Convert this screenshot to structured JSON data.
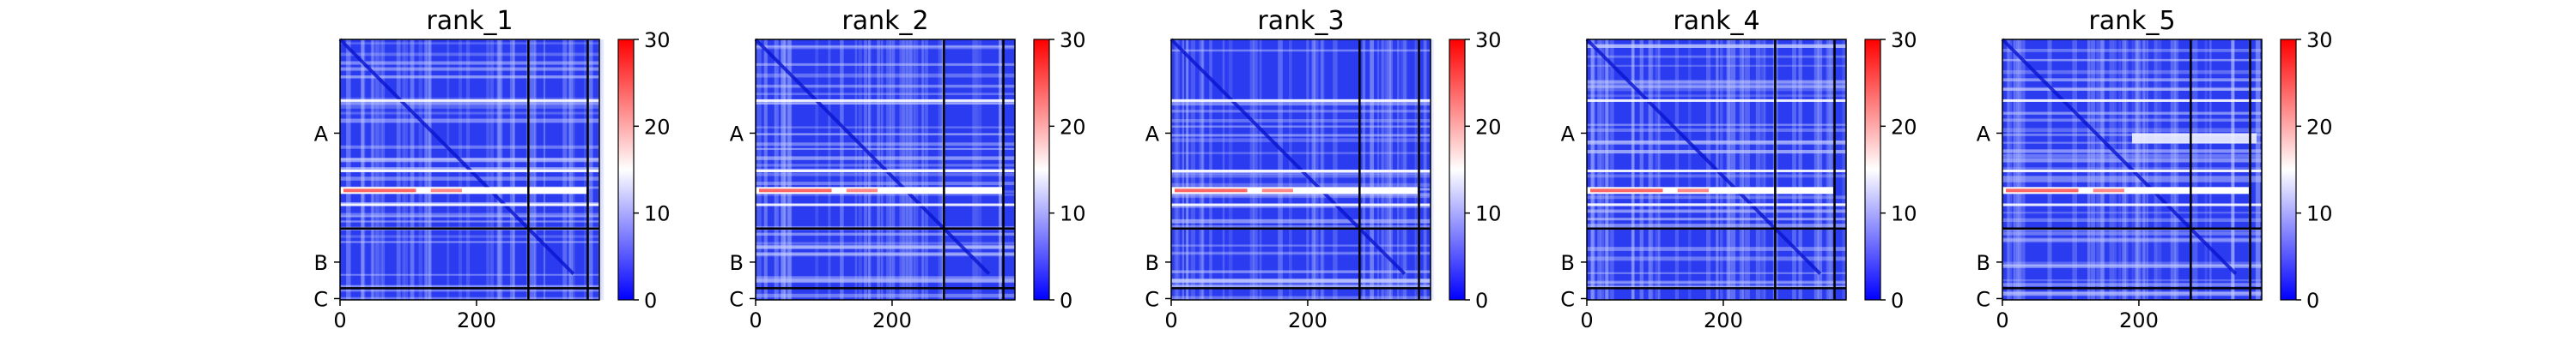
{
  "colors": {
    "low": "#0000ff",
    "mid": "#ffffff",
    "high": "#ff0000",
    "divider": "#000000",
    "axis": "#000000"
  },
  "chart_data": [
    {
      "type": "heatmap",
      "title": "rank_1",
      "xlabel": "",
      "ylabel": "",
      "x_ticks": [
        0,
        200
      ],
      "xlim": [
        0,
        380
      ],
      "y_tick_labels": [
        "A",
        "B",
        "C"
      ],
      "colorbar": {
        "ticks": [
          0,
          10,
          20,
          30
        ],
        "range": [
          0,
          30
        ],
        "colormap": "bwr"
      },
      "segment_boundaries": [
        276,
        363
      ],
      "notes": "Mostly low values (blue) with lighter horizontal bands; one high (red) band near the lower third of segment A."
    },
    {
      "type": "heatmap",
      "title": "rank_2",
      "xlabel": "",
      "ylabel": "",
      "x_ticks": [
        0,
        200
      ],
      "xlim": [
        0,
        380
      ],
      "y_tick_labels": [
        "A",
        "B",
        "C"
      ],
      "colorbar": {
        "ticks": [
          0,
          10,
          20,
          30
        ],
        "range": [
          0,
          30
        ],
        "colormap": "bwr"
      },
      "segment_boundaries": [
        276,
        363
      ],
      "notes": "Similar pattern to rank_1."
    },
    {
      "type": "heatmap",
      "title": "rank_3",
      "xlabel": "",
      "ylabel": "",
      "x_ticks": [
        0,
        200
      ],
      "xlim": [
        0,
        380
      ],
      "y_tick_labels": [
        "A",
        "B",
        "C"
      ],
      "colorbar": {
        "ticks": [
          0,
          10,
          20,
          30
        ],
        "range": [
          0,
          30
        ],
        "colormap": "bwr"
      },
      "segment_boundaries": [
        276,
        363
      ],
      "notes": "Similar pattern to rank_1."
    },
    {
      "type": "heatmap",
      "title": "rank_4",
      "xlabel": "",
      "ylabel": "",
      "x_ticks": [
        0,
        200
      ],
      "xlim": [
        0,
        380
      ],
      "y_tick_labels": [
        "A",
        "B",
        "C"
      ],
      "colorbar": {
        "ticks": [
          0,
          10,
          20,
          30
        ],
        "range": [
          0,
          30
        ],
        "colormap": "bwr"
      },
      "segment_boundaries": [
        276,
        363
      ],
      "notes": "Similar pattern to rank_1."
    },
    {
      "type": "heatmap",
      "title": "rank_5",
      "xlabel": "",
      "ylabel": "",
      "x_ticks": [
        0,
        200
      ],
      "xlim": [
        0,
        380
      ],
      "y_tick_labels": [
        "A",
        "B",
        "C"
      ],
      "colorbar": {
        "ticks": [
          0,
          10,
          20,
          30
        ],
        "range": [
          0,
          30
        ],
        "colormap": "bwr"
      },
      "segment_boundaries": [
        276,
        363
      ],
      "notes": "Extra lighter band in upper part of segment A."
    }
  ]
}
